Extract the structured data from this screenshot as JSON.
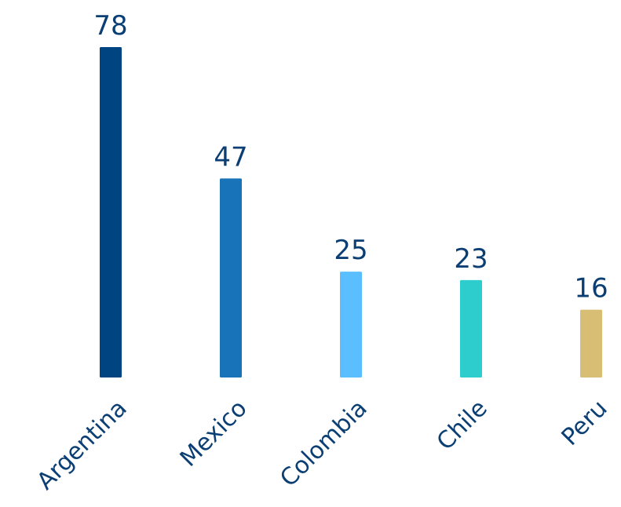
{
  "chart_data": {
    "type": "bar",
    "categories": [
      "Argentina",
      "Mexico",
      "Colombia",
      "Chile",
      "Peru"
    ],
    "values": [
      78,
      47,
      25,
      23,
      16
    ],
    "value_labels": [
      "78",
      "47",
      "25",
      "23",
      "16"
    ],
    "colors": [
      "#004481",
      "#1973b8",
      "#5bbeff",
      "#2dcccd",
      "#d8be75"
    ],
    "title": "",
    "xlabel": "",
    "ylabel": "",
    "ylim": [
      0,
      78
    ],
    "grid": false,
    "legend": "none",
    "data_labels": "above bars",
    "category_label_rotation": "-45deg"
  }
}
